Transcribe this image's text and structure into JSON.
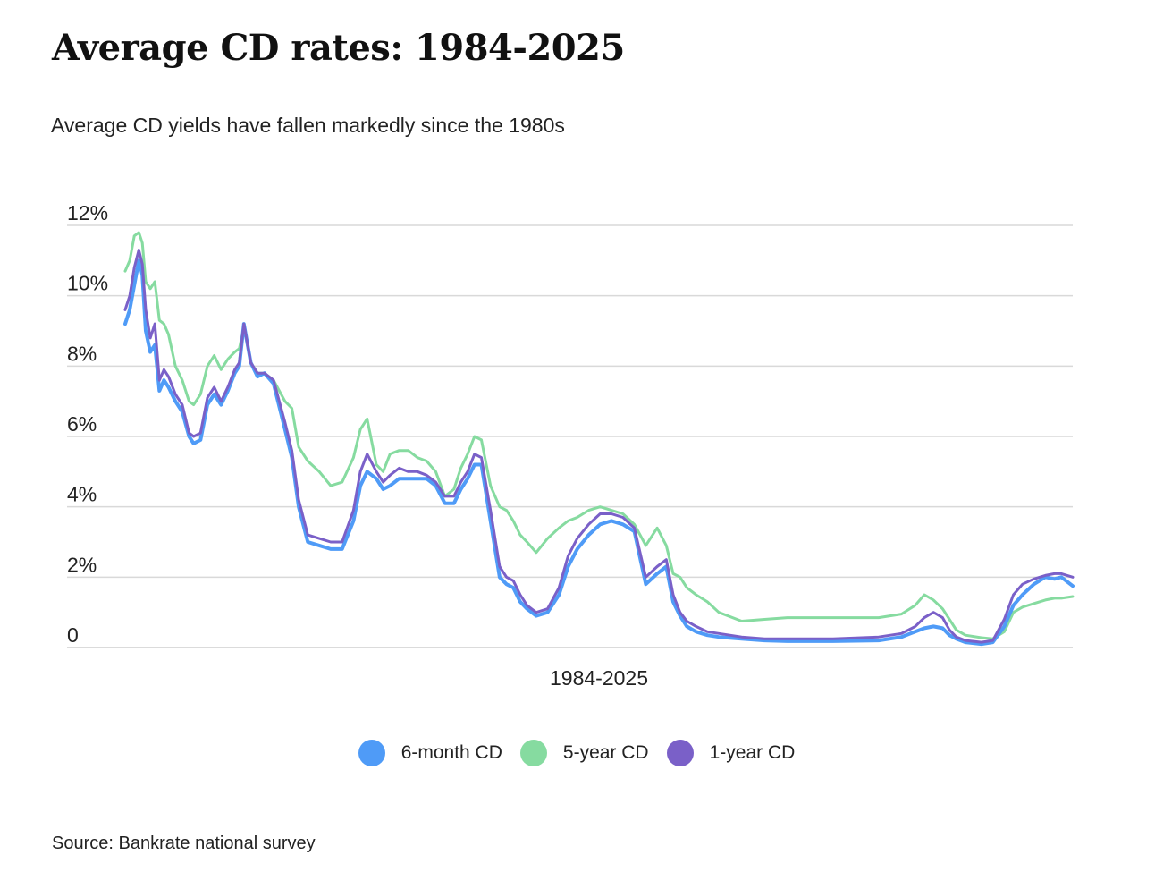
{
  "title": "Average CD rates: 1984-2025",
  "subtitle": "Average CD yields have fallen markedly since the 1980s",
  "source": "Source: Bankrate national survey",
  "chart_data": {
    "type": "line",
    "xlabel": "1984-2025",
    "ylabel": "",
    "ylim": [
      0,
      12
    ],
    "xlim": [
      1984.0,
      2025.5
    ],
    "y_ticks": [
      {
        "value": 0,
        "label": "0"
      },
      {
        "value": 2,
        "label": "2%"
      },
      {
        "value": 4,
        "label": "4%"
      },
      {
        "value": 6,
        "label": "6%"
      },
      {
        "value": 8,
        "label": "8%"
      },
      {
        "value": 10,
        "label": "10%"
      },
      {
        "value": 12,
        "label": "12%"
      }
    ],
    "grid": true,
    "legend_position": "bottom-center",
    "series": [
      {
        "name": "6-month CD",
        "color": "#4f9bf7",
        "x": [
          1984.0,
          1984.2,
          1984.4,
          1984.6,
          1984.75,
          1984.9,
          1985.1,
          1985.3,
          1985.5,
          1985.7,
          1985.9,
          1986.2,
          1986.5,
          1986.8,
          1987.0,
          1987.3,
          1987.6,
          1987.9,
          1988.2,
          1988.5,
          1988.8,
          1989.0,
          1989.2,
          1989.5,
          1989.8,
          1990.1,
          1990.5,
          1991.0,
          1991.3,
          1991.6,
          1992.0,
          1992.5,
          1993.0,
          1993.5,
          1994.0,
          1994.3,
          1994.6,
          1995.0,
          1995.3,
          1995.6,
          1996.0,
          1996.4,
          1996.8,
          1997.2,
          1997.6,
          1998.0,
          1998.4,
          1998.7,
          1999.0,
          1999.3,
          1999.6,
          2000.0,
          2000.4,
          2000.7,
          2001.0,
          2001.3,
          2001.6,
          2002.0,
          2002.5,
          2003.0,
          2003.4,
          2003.8,
          2004.3,
          2004.8,
          2005.3,
          2005.8,
          2006.3,
          2006.8,
          2007.3,
          2007.7,
          2008.0,
          2008.3,
          2008.6,
          2009.0,
          2009.5,
          2010.0,
          2011.0,
          2012.0,
          2013.0,
          2015.0,
          2017.0,
          2018.0,
          2018.6,
          2019.0,
          2019.4,
          2019.8,
          2020.1,
          2020.4,
          2020.8,
          2021.5,
          2022.0,
          2022.5,
          2022.9,
          2023.3,
          2023.8,
          2024.3,
          2024.7,
          2025.0,
          2025.5
        ],
        "values": [
          9.2,
          9.6,
          10.3,
          11.0,
          10.6,
          9.0,
          8.4,
          8.6,
          7.3,
          7.6,
          7.4,
          7.0,
          6.7,
          6.0,
          5.8,
          5.9,
          6.9,
          7.2,
          6.9,
          7.3,
          7.8,
          8.0,
          9.2,
          8.1,
          7.7,
          7.8,
          7.5,
          6.2,
          5.4,
          4.0,
          3.0,
          2.9,
          2.8,
          2.8,
          3.6,
          4.6,
          5.0,
          4.8,
          4.5,
          4.6,
          4.8,
          4.8,
          4.8,
          4.8,
          4.6,
          4.1,
          4.1,
          4.5,
          4.8,
          5.2,
          5.2,
          3.6,
          2.0,
          1.8,
          1.7,
          1.3,
          1.1,
          0.9,
          1.0,
          1.5,
          2.3,
          2.8,
          3.2,
          3.5,
          3.6,
          3.5,
          3.3,
          1.8,
          2.1,
          2.3,
          1.3,
          0.9,
          0.6,
          0.45,
          0.35,
          0.3,
          0.25,
          0.2,
          0.18,
          0.18,
          0.2,
          0.3,
          0.45,
          0.55,
          0.6,
          0.55,
          0.35,
          0.25,
          0.15,
          0.1,
          0.15,
          0.6,
          1.2,
          1.5,
          1.8,
          2.0,
          1.95,
          2.0,
          1.75
        ]
      },
      {
        "name": "5-year CD",
        "color": "#86dba0",
        "x": [
          1984.0,
          1984.2,
          1984.4,
          1984.6,
          1984.75,
          1984.9,
          1985.1,
          1985.3,
          1985.5,
          1985.7,
          1985.9,
          1986.2,
          1986.5,
          1986.8,
          1987.0,
          1987.3,
          1987.6,
          1987.9,
          1988.2,
          1988.5,
          1988.8,
          1989.0,
          1989.2,
          1989.5,
          1989.8,
          1990.1,
          1990.5,
          1991.0,
          1991.3,
          1991.6,
          1992.0,
          1992.5,
          1993.0,
          1993.5,
          1994.0,
          1994.3,
          1994.6,
          1995.0,
          1995.3,
          1995.6,
          1996.0,
          1996.4,
          1996.8,
          1997.2,
          1997.6,
          1998.0,
          1998.4,
          1998.7,
          1999.0,
          1999.3,
          1999.6,
          2000.0,
          2000.4,
          2000.7,
          2001.0,
          2001.3,
          2001.6,
          2002.0,
          2002.5,
          2003.0,
          2003.4,
          2003.8,
          2004.3,
          2004.8,
          2005.3,
          2005.8,
          2006.3,
          2006.8,
          2007.3,
          2007.7,
          2008.0,
          2008.3,
          2008.6,
          2009.0,
          2009.5,
          2010.0,
          2011.0,
          2012.0,
          2013.0,
          2015.0,
          2017.0,
          2018.0,
          2018.6,
          2019.0,
          2019.4,
          2019.8,
          2020.1,
          2020.4,
          2020.8,
          2021.5,
          2022.0,
          2022.5,
          2022.9,
          2023.3,
          2023.8,
          2024.3,
          2024.7,
          2025.0,
          2025.5
        ],
        "values": [
          10.7,
          11.0,
          11.7,
          11.8,
          11.5,
          10.4,
          10.2,
          10.4,
          9.3,
          9.2,
          8.9,
          8.0,
          7.6,
          7.0,
          6.9,
          7.2,
          8.0,
          8.3,
          7.9,
          8.2,
          8.4,
          8.5,
          9.1,
          8.1,
          7.8,
          7.8,
          7.6,
          7.0,
          6.8,
          5.7,
          5.3,
          5.0,
          4.6,
          4.7,
          5.4,
          6.2,
          6.5,
          5.2,
          5.0,
          5.5,
          5.6,
          5.6,
          5.4,
          5.3,
          5.0,
          4.3,
          4.5,
          5.1,
          5.5,
          6.0,
          5.9,
          4.6,
          4.0,
          3.9,
          3.6,
          3.2,
          3.0,
          2.7,
          3.1,
          3.4,
          3.6,
          3.7,
          3.9,
          4.0,
          3.9,
          3.8,
          3.5,
          2.9,
          3.4,
          2.9,
          2.1,
          2.0,
          1.7,
          1.5,
          1.3,
          1.0,
          0.75,
          0.8,
          0.85,
          0.85,
          0.85,
          0.95,
          1.2,
          1.5,
          1.35,
          1.1,
          0.8,
          0.5,
          0.35,
          0.28,
          0.25,
          0.45,
          1.0,
          1.15,
          1.25,
          1.35,
          1.4,
          1.4,
          1.45
        ]
      },
      {
        "name": "1-year CD",
        "color": "#7a60c8",
        "x": [
          1984.0,
          1984.2,
          1984.4,
          1984.6,
          1984.75,
          1984.9,
          1985.1,
          1985.3,
          1985.5,
          1985.7,
          1985.9,
          1986.2,
          1986.5,
          1986.8,
          1987.0,
          1987.3,
          1987.6,
          1987.9,
          1988.2,
          1988.5,
          1988.8,
          1989.0,
          1989.2,
          1989.5,
          1989.8,
          1990.1,
          1990.5,
          1991.0,
          1991.3,
          1991.6,
          1992.0,
          1992.5,
          1993.0,
          1993.5,
          1994.0,
          1994.3,
          1994.6,
          1995.0,
          1995.3,
          1995.6,
          1996.0,
          1996.4,
          1996.8,
          1997.2,
          1997.6,
          1998.0,
          1998.4,
          1998.7,
          1999.0,
          1999.3,
          1999.6,
          2000.0,
          2000.4,
          2000.7,
          2001.0,
          2001.3,
          2001.6,
          2002.0,
          2002.5,
          2003.0,
          2003.4,
          2003.8,
          2004.3,
          2004.8,
          2005.3,
          2005.8,
          2006.3,
          2006.8,
          2007.3,
          2007.7,
          2008.0,
          2008.3,
          2008.6,
          2009.0,
          2009.5,
          2010.0,
          2011.0,
          2012.0,
          2013.0,
          2015.0,
          2017.0,
          2018.0,
          2018.6,
          2019.0,
          2019.4,
          2019.8,
          2020.1,
          2020.4,
          2020.8,
          2021.5,
          2022.0,
          2022.5,
          2022.9,
          2023.3,
          2023.8,
          2024.3,
          2024.7,
          2025.0,
          2025.5
        ],
        "values": [
          9.6,
          10.0,
          10.8,
          11.3,
          10.9,
          9.6,
          8.8,
          9.2,
          7.6,
          7.9,
          7.7,
          7.2,
          6.9,
          6.1,
          6.0,
          6.1,
          7.1,
          7.4,
          7.0,
          7.4,
          7.9,
          8.1,
          9.2,
          8.1,
          7.8,
          7.8,
          7.6,
          6.4,
          5.6,
          4.2,
          3.2,
          3.1,
          3.0,
          3.0,
          3.9,
          5.0,
          5.5,
          5.0,
          4.7,
          4.9,
          5.1,
          5.0,
          5.0,
          4.9,
          4.7,
          4.3,
          4.3,
          4.7,
          5.0,
          5.5,
          5.4,
          3.9,
          2.3,
          2.0,
          1.9,
          1.5,
          1.2,
          1.0,
          1.1,
          1.7,
          2.6,
          3.1,
          3.5,
          3.8,
          3.8,
          3.7,
          3.4,
          2.0,
          2.3,
          2.5,
          1.5,
          1.0,
          0.75,
          0.6,
          0.45,
          0.4,
          0.3,
          0.25,
          0.25,
          0.25,
          0.3,
          0.4,
          0.6,
          0.85,
          1.0,
          0.85,
          0.5,
          0.3,
          0.2,
          0.15,
          0.2,
          0.8,
          1.5,
          1.8,
          1.95,
          2.05,
          2.1,
          2.1,
          2.0
        ]
      }
    ]
  }
}
